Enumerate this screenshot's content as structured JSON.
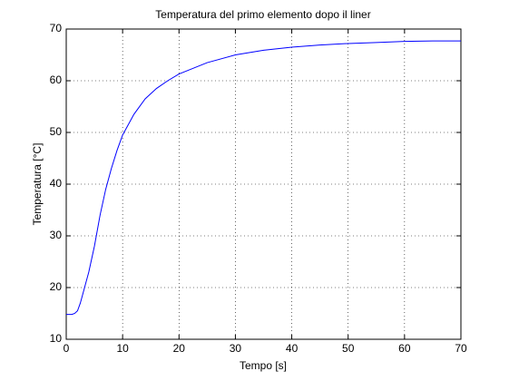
{
  "chart_data": {
    "type": "line",
    "title": "Temperatura del primo elemento dopo il liner",
    "x_label": "Tempo [s]",
    "y_label": "Temperatura [°C]",
    "x": [
      0,
      1,
      1.5,
      2,
      2.5,
      3,
      4,
      5,
      6,
      7,
      8,
      9,
      10,
      12,
      14,
      16,
      18,
      20,
      25,
      30,
      35,
      40,
      45,
      50,
      55,
      60,
      65,
      70
    ],
    "series": [
      {
        "name": "Temperatura",
        "color": "#0000ff",
        "values": [
          14.8,
          14.8,
          15,
          15.5,
          17,
          19,
          23,
          28,
          34,
          39,
          43,
          46.5,
          49.5,
          53.5,
          56.5,
          58.5,
          60,
          61.3,
          63.5,
          65,
          65.9,
          66.5,
          66.9,
          67.2,
          67.4,
          67.6,
          67.7,
          67.7
        ]
      }
    ],
    "xlim": [
      0,
      70
    ],
    "xticks": [
      0,
      10,
      20,
      30,
      40,
      50,
      60,
      70
    ],
    "ylim": [
      10,
      70
    ],
    "yticks": [
      10,
      20,
      30,
      40,
      50,
      60,
      70
    ],
    "grid": true
  }
}
